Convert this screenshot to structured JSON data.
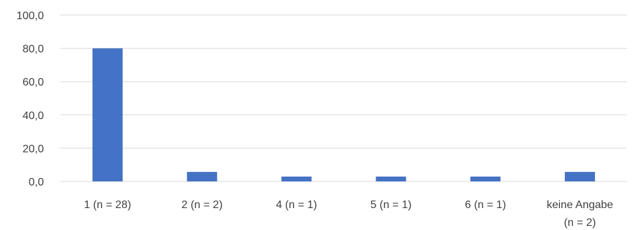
{
  "chart_data": {
    "type": "bar",
    "categories": [
      [
        "1 (n = 28)"
      ],
      [
        "2 (n = 2)"
      ],
      [
        "4 (n = 1)"
      ],
      [
        "5 (n = 1)"
      ],
      [
        "6 (n = 1)"
      ],
      [
        "keine Angabe",
        "(n = 2)"
      ]
    ],
    "values": [
      80.0,
      5.7,
      2.9,
      2.9,
      2.9,
      5.7
    ],
    "ylim": [
      0,
      100
    ],
    "yticks": [
      0,
      20,
      40,
      60,
      80,
      100
    ],
    "ytick_labels": [
      "0,0",
      "20,0",
      "40,0",
      "60,0",
      "80,0",
      "100,0"
    ],
    "grid": true,
    "legend": "none",
    "bar_color": "#4472C4",
    "grid_color": "#D9D9D9",
    "label_color": "#404040"
  }
}
